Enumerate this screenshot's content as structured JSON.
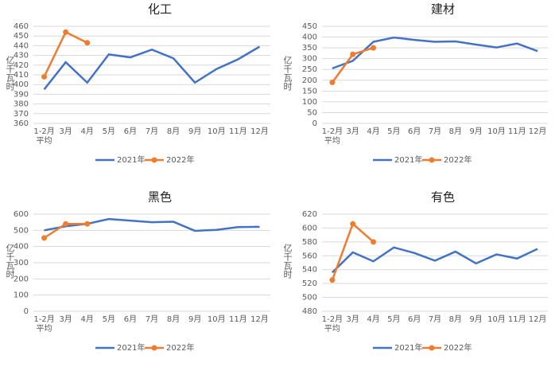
{
  "chart_data": [
    {
      "type": "line",
      "title": "化工",
      "ylabel": "亿千瓦时",
      "categories": [
        "1-2月\n平均",
        "3月",
        "4月",
        "5月",
        "6月",
        "7月",
        "8月",
        "9月",
        "10月",
        "11月",
        "12月"
      ],
      "series": [
        {
          "name": "2021年",
          "color": "#4472c4",
          "markers": false,
          "values": [
            395,
            423,
            402,
            431,
            428,
            436,
            427,
            402,
            416,
            426,
            439
          ]
        },
        {
          "name": "2022年",
          "color": "#ed7d31",
          "markers": true,
          "values": [
            408,
            454,
            443,
            null,
            null,
            null,
            null,
            null,
            null,
            null,
            null
          ]
        }
      ],
      "ylim": [
        360,
        460
      ],
      "yticks": [
        360,
        370,
        380,
        390,
        400,
        410,
        420,
        430,
        440,
        450,
        460
      ],
      "grid": true,
      "legend": "bottom"
    },
    {
      "type": "line",
      "title": "建材",
      "ylabel": "亿千瓦时",
      "categories": [
        "1-2月\n平均",
        "3月",
        "4月",
        "5月",
        "6月",
        "7月",
        "8月",
        "9月",
        "10月",
        "11月",
        "12月"
      ],
      "series": [
        {
          "name": "2021年",
          "color": "#4472c4",
          "markers": false,
          "values": [
            255,
            290,
            378,
            398,
            387,
            378,
            380,
            365,
            352,
            370,
            335
          ]
        },
        {
          "name": "2022年",
          "color": "#ed7d31",
          "markers": true,
          "values": [
            190,
            320,
            350,
            null,
            null,
            null,
            null,
            null,
            null,
            null,
            null
          ]
        }
      ],
      "ylim": [
        0,
        450
      ],
      "yticks": [
        0,
        50,
        100,
        150,
        200,
        250,
        300,
        350,
        400,
        450
      ],
      "grid": true,
      "legend": "bottom"
    },
    {
      "type": "line",
      "title": "黑色",
      "ylabel": "亿千瓦时",
      "categories": [
        "1-2月\n平均",
        "3月",
        "4月",
        "5月",
        "6月",
        "7月",
        "8月",
        "9月",
        "10月",
        "11月",
        "12月"
      ],
      "series": [
        {
          "name": "2021年",
          "color": "#4472c4",
          "markers": false,
          "values": [
            500,
            525,
            540,
            570,
            560,
            550,
            553,
            497,
            503,
            520,
            522
          ]
        },
        {
          "name": "2022年",
          "color": "#ed7d31",
          "markers": true,
          "values": [
            453,
            540,
            540,
            null,
            null,
            null,
            null,
            null,
            null,
            null,
            null
          ]
        }
      ],
      "ylim": [
        0,
        600
      ],
      "yticks": [
        0,
        100,
        200,
        300,
        400,
        500,
        600
      ],
      "grid": true,
      "legend": "bottom"
    },
    {
      "type": "line",
      "title": "有色",
      "ylabel": "亿千瓦时",
      "categories": [
        "1-2月\n平均",
        "3月",
        "4月",
        "5月",
        "6月",
        "7月",
        "8月",
        "9月",
        "10月",
        "11月",
        "12月"
      ],
      "series": [
        {
          "name": "2021年",
          "color": "#4472c4",
          "markers": false,
          "values": [
            536,
            565,
            552,
            572,
            564,
            553,
            566,
            549,
            562,
            556,
            570
          ]
        },
        {
          "name": "2022年",
          "color": "#ed7d31",
          "markers": true,
          "values": [
            525,
            606,
            580,
            null,
            null,
            null,
            null,
            null,
            null,
            null,
            null
          ]
        }
      ],
      "ylim": [
        480,
        620
      ],
      "yticks": [
        480,
        500,
        520,
        540,
        560,
        580,
        600,
        620
      ],
      "grid": true,
      "legend": "bottom"
    }
  ]
}
